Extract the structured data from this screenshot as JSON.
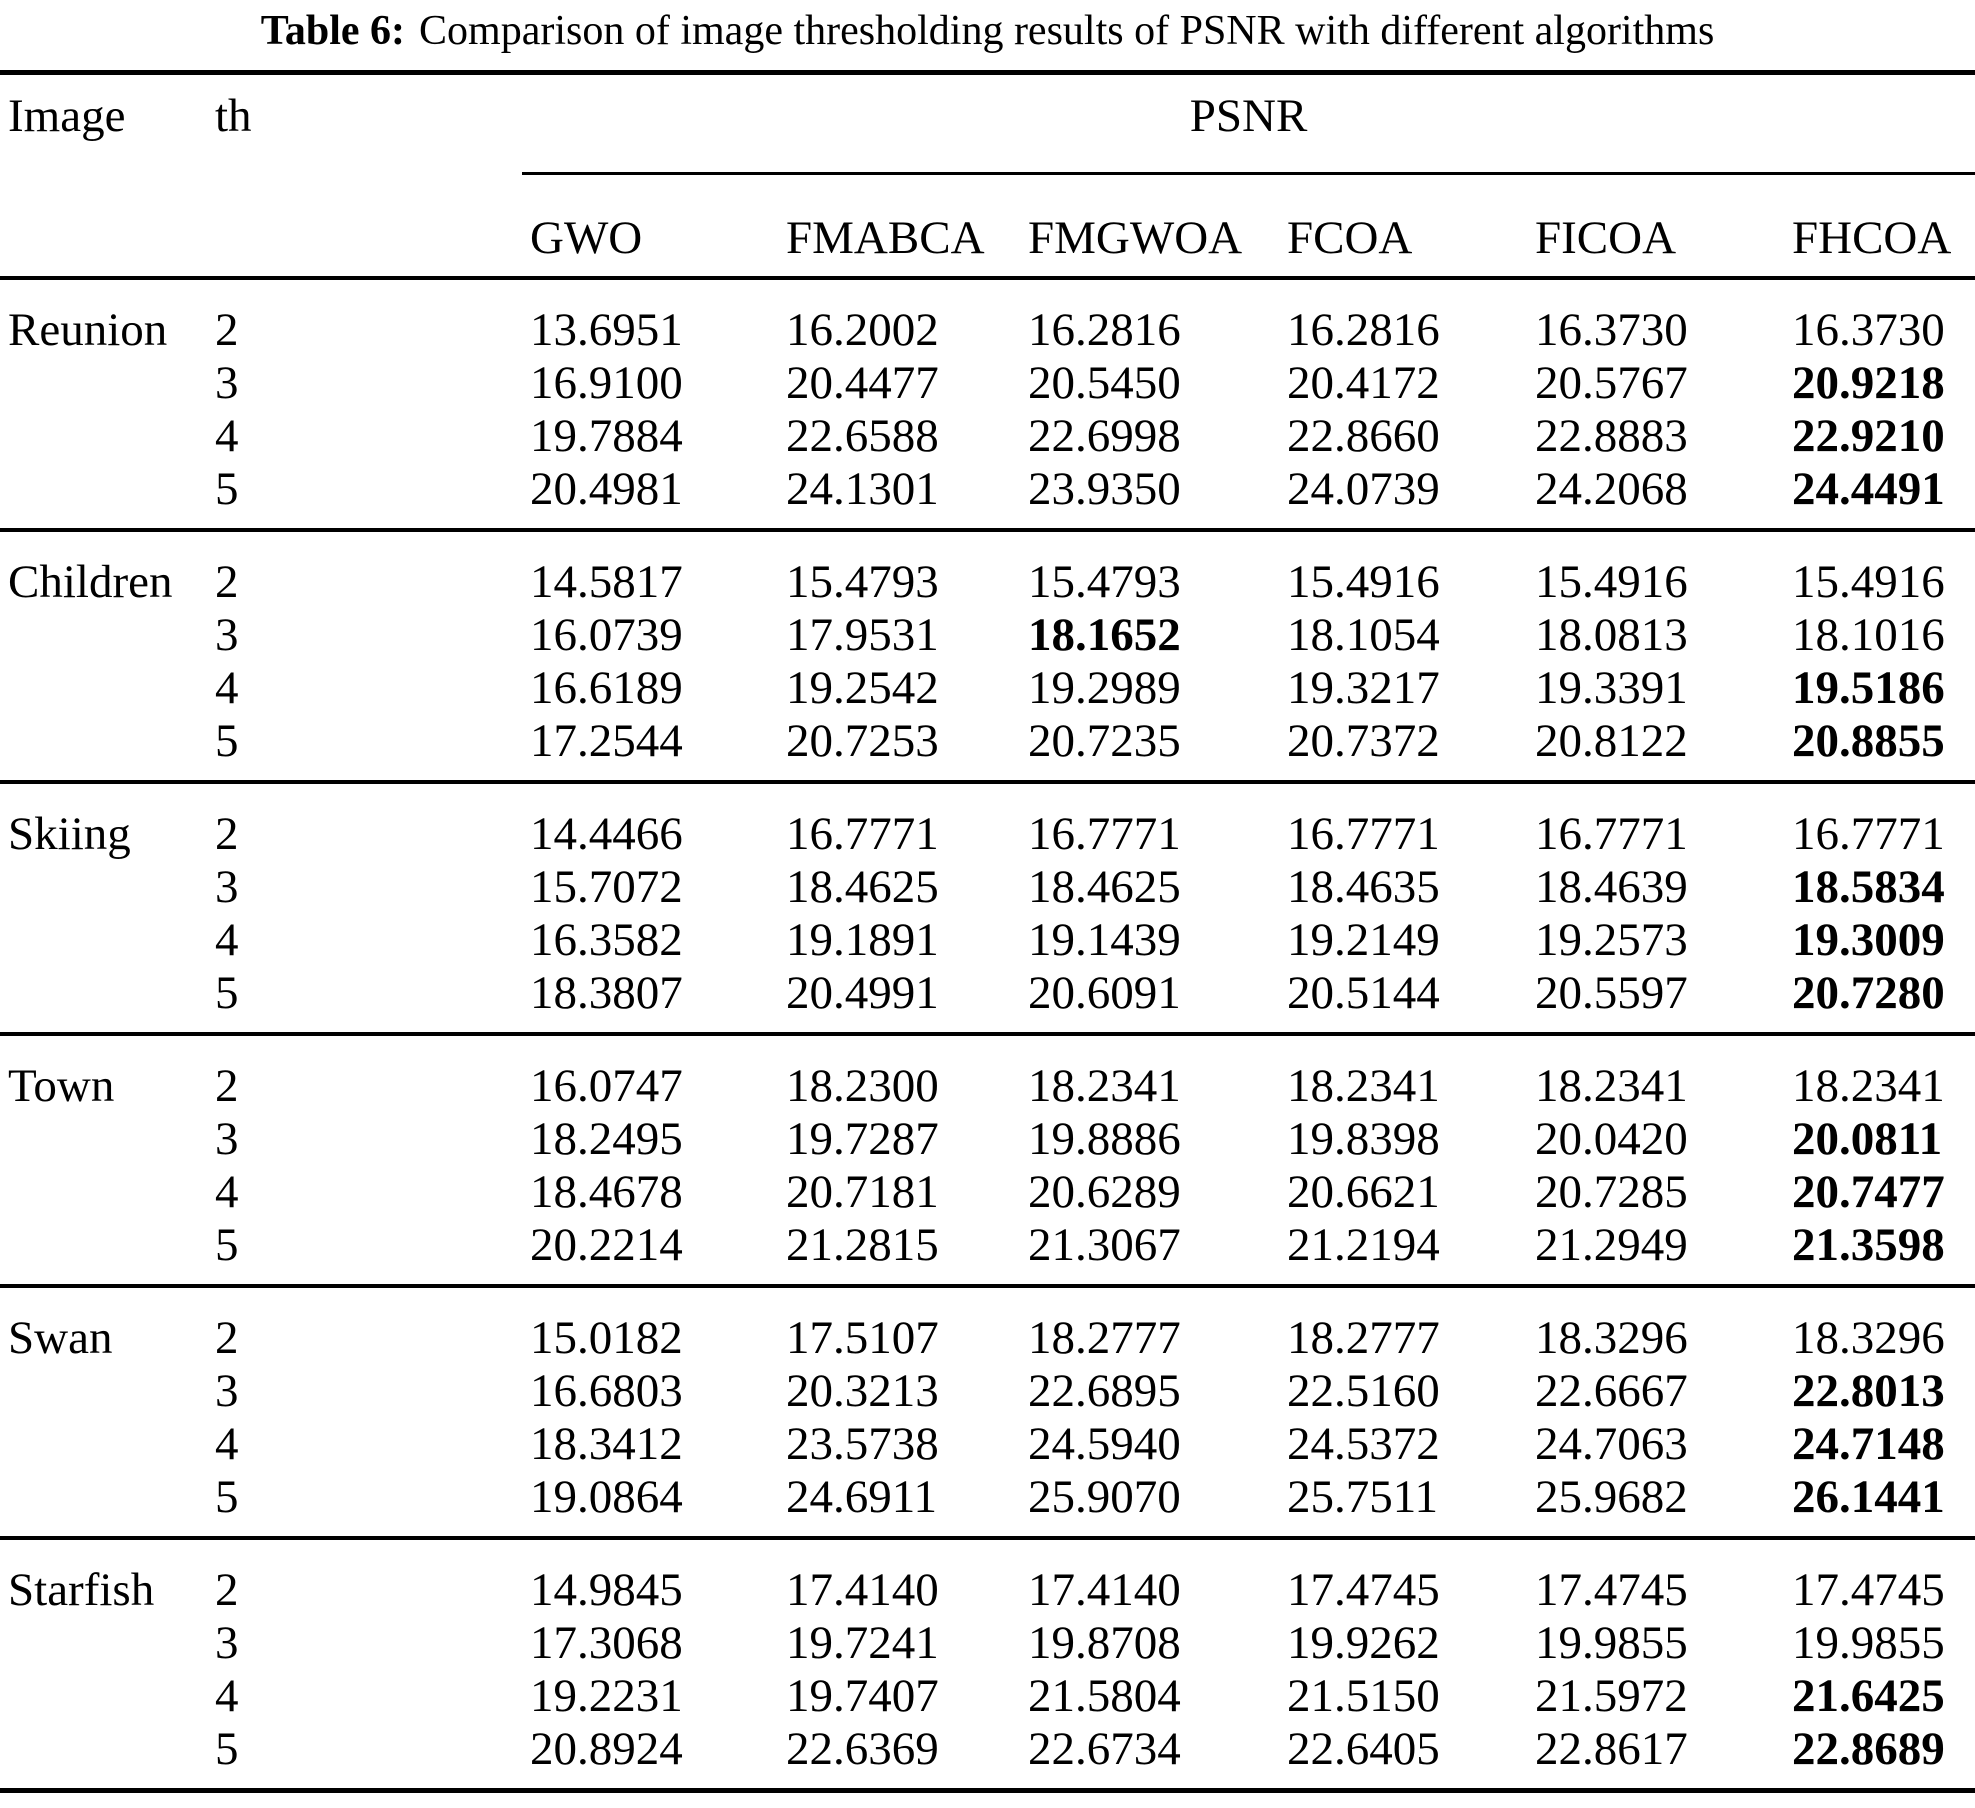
{
  "colors": {
    "text": "#000000",
    "background": "#ffffff"
  },
  "title": {
    "label": "Table 6:",
    "text": "Comparison of image thresholding results of PSNR with different algorithms"
  },
  "table": {
    "col1_header": "Image",
    "col2_header": "th",
    "group_header": "PSNR",
    "algorithms": [
      "GWO",
      "FMABCA",
      "FMGWOA",
      "FCOA",
      "FICOA",
      "FHCOA"
    ],
    "sections": [
      {
        "image": "Reunion",
        "rows": [
          {
            "th": "2",
            "values": [
              "13.6951",
              "16.2002",
              "16.2816",
              "16.2816",
              "16.3730",
              "16.3730"
            ],
            "bold": []
          },
          {
            "th": "3",
            "values": [
              "16.9100",
              "20.4477",
              "20.5450",
              "20.4172",
              "20.5767",
              "20.9218"
            ],
            "bold": [
              5
            ]
          },
          {
            "th": "4",
            "values": [
              "19.7884",
              "22.6588",
              "22.6998",
              "22.8660",
              "22.8883",
              "22.9210"
            ],
            "bold": [
              5
            ]
          },
          {
            "th": "5",
            "values": [
              "20.4981",
              "24.1301",
              "23.9350",
              "24.0739",
              "24.2068",
              "24.4491"
            ],
            "bold": [
              5
            ]
          }
        ]
      },
      {
        "image": "Children",
        "rows": [
          {
            "th": "2",
            "values": [
              "14.5817",
              "15.4793",
              "15.4793",
              "15.4916",
              "15.4916",
              "15.4916"
            ],
            "bold": []
          },
          {
            "th": "3",
            "values": [
              "16.0739",
              "17.9531",
              "18.1652",
              "18.1054",
              "18.0813",
              "18.1016"
            ],
            "bold": [
              2
            ]
          },
          {
            "th": "4",
            "values": [
              "16.6189",
              "19.2542",
              "19.2989",
              "19.3217",
              "19.3391",
              "19.5186"
            ],
            "bold": [
              5
            ]
          },
          {
            "th": "5",
            "values": [
              "17.2544",
              "20.7253",
              "20.7235",
              "20.7372",
              "20.8122",
              "20.8855"
            ],
            "bold": [
              5
            ]
          }
        ]
      },
      {
        "image": "Skiing",
        "rows": [
          {
            "th": "2",
            "values": [
              "14.4466",
              "16.7771",
              "16.7771",
              "16.7771",
              "16.7771",
              "16.7771"
            ],
            "bold": []
          },
          {
            "th": "3",
            "values": [
              "15.7072",
              "18.4625",
              "18.4625",
              "18.4635",
              "18.4639",
              "18.5834"
            ],
            "bold": [
              5
            ]
          },
          {
            "th": "4",
            "values": [
              "16.3582",
              "19.1891",
              "19.1439",
              "19.2149",
              "19.2573",
              "19.3009"
            ],
            "bold": [
              5
            ]
          },
          {
            "th": "5",
            "values": [
              "18.3807",
              "20.4991",
              "20.6091",
              "20.5144",
              "20.5597",
              "20.7280"
            ],
            "bold": [
              5
            ]
          }
        ]
      },
      {
        "image": "Town",
        "rows": [
          {
            "th": "2",
            "values": [
              "16.0747",
              "18.2300",
              "18.2341",
              "18.2341",
              "18.2341",
              "18.2341"
            ],
            "bold": []
          },
          {
            "th": "3",
            "values": [
              "18.2495",
              "19.7287",
              "19.8886",
              "19.8398",
              "20.0420",
              "20.0811"
            ],
            "bold": [
              5
            ]
          },
          {
            "th": "4",
            "values": [
              "18.4678",
              "20.7181",
              "20.6289",
              "20.6621",
              "20.7285",
              "20.7477"
            ],
            "bold": [
              5
            ]
          },
          {
            "th": "5",
            "values": [
              "20.2214",
              "21.2815",
              "21.3067",
              "21.2194",
              "21.2949",
              "21.3598"
            ],
            "bold": [
              5
            ]
          }
        ]
      },
      {
        "image": "Swan",
        "rows": [
          {
            "th": "2",
            "values": [
              "15.0182",
              "17.5107",
              "18.2777",
              "18.2777",
              "18.3296",
              "18.3296"
            ],
            "bold": []
          },
          {
            "th": "3",
            "values": [
              "16.6803",
              "20.3213",
              "22.6895",
              "22.5160",
              "22.6667",
              "22.8013"
            ],
            "bold": [
              5
            ]
          },
          {
            "th": "4",
            "values": [
              "18.3412",
              "23.5738",
              "24.5940",
              "24.5372",
              "24.7063",
              "24.7148"
            ],
            "bold": [
              5
            ]
          },
          {
            "th": "5",
            "values": [
              "19.0864",
              "24.6911",
              "25.9070",
              "25.7511",
              "25.9682",
              "26.1441"
            ],
            "bold": [
              5
            ]
          }
        ]
      },
      {
        "image": "Starfish",
        "rows": [
          {
            "th": "2",
            "values": [
              "14.9845",
              "17.4140",
              "17.4140",
              "17.4745",
              "17.4745",
              "17.4745"
            ],
            "bold": []
          },
          {
            "th": "3",
            "values": [
              "17.3068",
              "19.7241",
              "19.8708",
              "19.9262",
              "19.9855",
              "19.9855"
            ],
            "bold": []
          },
          {
            "th": "4",
            "values": [
              "19.2231",
              "19.7407",
              "21.5804",
              "21.5150",
              "21.5972",
              "21.6425"
            ],
            "bold": [
              5
            ]
          },
          {
            "th": "5",
            "values": [
              "20.8924",
              "22.6369",
              "22.6734",
              "22.6405",
              "22.8617",
              "22.8689"
            ],
            "bold": [
              5
            ]
          }
        ]
      }
    ]
  }
}
